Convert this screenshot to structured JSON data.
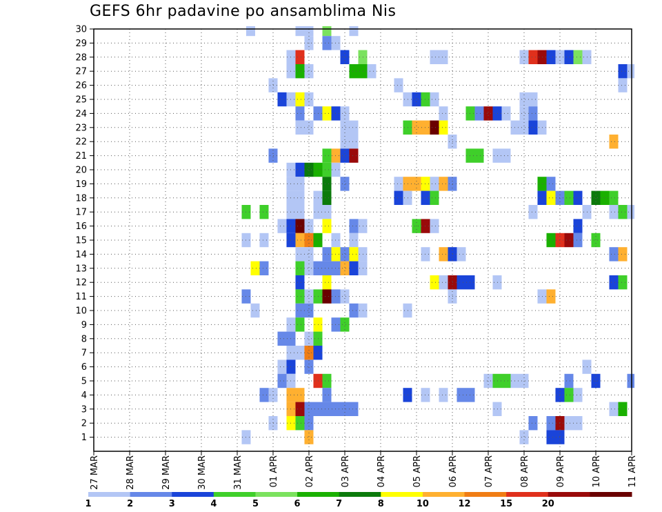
{
  "chart_data": {
    "type": "heatmap",
    "title": "GEFS 6hr padavine po ansamblima Nis",
    "xlabel": "",
    "ylabel": "",
    "x_axis": {
      "unit": "6-hour steps from 27 MAR",
      "range": [
        0,
        60
      ],
      "tick_labels": [
        "27 MAR",
        "28 MAR",
        "29 MAR",
        "30 MAR",
        "31 MAR",
        "01 APR",
        "02 APR",
        "03 APR",
        "04 APR",
        "05 APR",
        "06 APR",
        "07 APR",
        "08 APR",
        "09 APR",
        "10 APR",
        "11 APR"
      ]
    },
    "y_axis": {
      "range": [
        0,
        30
      ],
      "tick_labels": [
        "1",
        "2",
        "3",
        "4",
        "5",
        "6",
        "7",
        "8",
        "9",
        "10",
        "11",
        "12",
        "13",
        "14",
        "15",
        "16",
        "17",
        "18",
        "19",
        "20",
        "21",
        "22",
        "23",
        "24",
        "25",
        "26",
        "27",
        "28",
        "29",
        "30"
      ]
    },
    "grid": "dotted",
    "colorbar": {
      "labels": [
        "1",
        "2",
        "3",
        "4",
        "5",
        "6",
        "7",
        "8",
        "10",
        "12",
        "15",
        "20"
      ],
      "colors": [
        "#b3c6f5",
        "#6688e8",
        "#1a44d9",
        "#3fcf2a",
        "#7be25e",
        "#1ab000",
        "#0b7a0b",
        "#ffff00",
        "#ffb030",
        "#f07d14",
        "#e0301c",
        "#9a0a0a",
        "#6a0000"
      ]
    },
    "cells": [
      [
        17.5,
        30,
        0
      ],
      [
        23,
        30,
        0
      ],
      [
        24,
        30,
        0
      ],
      [
        26,
        30,
        4
      ],
      [
        29,
        30,
        0
      ],
      [
        24,
        29,
        0
      ],
      [
        26,
        29,
        1
      ],
      [
        27,
        29,
        0
      ],
      [
        22,
        28,
        0
      ],
      [
        23,
        28,
        10
      ],
      [
        28,
        28,
        2
      ],
      [
        30,
        28,
        4
      ],
      [
        38,
        28,
        0
      ],
      [
        39,
        28,
        0
      ],
      [
        48,
        28,
        0
      ],
      [
        49,
        28,
        10
      ],
      [
        50,
        28,
        11
      ],
      [
        51,
        28,
        2
      ],
      [
        52,
        28,
        0
      ],
      [
        53,
        28,
        2
      ],
      [
        54,
        28,
        4
      ],
      [
        55,
        28,
        0
      ],
      [
        22,
        27,
        0
      ],
      [
        23,
        27,
        5
      ],
      [
        24,
        27,
        0
      ],
      [
        29,
        27,
        5
      ],
      [
        30,
        27,
        5
      ],
      [
        31,
        27,
        0
      ],
      [
        59,
        27,
        2
      ],
      [
        60,
        27,
        0
      ],
      [
        20,
        26,
        0
      ],
      [
        34,
        26,
        0
      ],
      [
        59,
        26,
        0
      ],
      [
        21,
        25,
        2
      ],
      [
        22,
        25,
        0
      ],
      [
        23,
        25,
        7
      ],
      [
        24,
        25,
        0
      ],
      [
        35,
        25,
        0
      ],
      [
        36,
        25,
        2
      ],
      [
        37,
        25,
        3
      ],
      [
        38,
        25,
        0
      ],
      [
        48,
        25,
        0
      ],
      [
        49,
        25,
        0
      ],
      [
        23,
        24,
        1
      ],
      [
        25,
        24,
        1
      ],
      [
        26,
        24,
        7
      ],
      [
        27,
        24,
        2
      ],
      [
        28,
        24,
        0
      ],
      [
        39,
        24,
        0
      ],
      [
        42,
        24,
        3
      ],
      [
        43,
        24,
        1
      ],
      [
        44,
        24,
        11
      ],
      [
        45,
        24,
        2
      ],
      [
        46,
        24,
        0
      ],
      [
        48,
        24,
        0
      ],
      [
        49,
        24,
        1
      ],
      [
        23,
        23,
        0
      ],
      [
        24,
        23,
        0
      ],
      [
        28,
        23,
        0
      ],
      [
        29,
        23,
        0
      ],
      [
        35,
        23,
        3
      ],
      [
        36,
        23,
        8
      ],
      [
        37,
        23,
        8
      ],
      [
        38,
        23,
        12
      ],
      [
        39,
        23,
        7
      ],
      [
        47,
        23,
        0
      ],
      [
        48,
        23,
        0
      ],
      [
        49,
        23,
        2
      ],
      [
        50,
        23,
        0
      ],
      [
        28,
        22,
        0
      ],
      [
        29,
        22,
        0
      ],
      [
        40,
        22,
        0
      ],
      [
        58,
        22,
        8
      ],
      [
        20,
        21,
        1
      ],
      [
        26,
        21,
        3
      ],
      [
        27,
        21,
        8
      ],
      [
        28,
        21,
        2
      ],
      [
        29,
        21,
        11
      ],
      [
        42,
        21,
        3
      ],
      [
        43,
        21,
        3
      ],
      [
        45,
        21,
        0
      ],
      [
        46,
        21,
        0
      ],
      [
        22,
        20,
        0
      ],
      [
        23,
        20,
        2
      ],
      [
        24,
        20,
        6
      ],
      [
        25,
        20,
        5
      ],
      [
        26,
        20,
        3
      ],
      [
        27,
        20,
        0
      ],
      [
        22,
        19,
        0
      ],
      [
        23,
        19,
        0
      ],
      [
        26,
        19,
        6
      ],
      [
        28,
        19,
        1
      ],
      [
        34,
        19,
        0
      ],
      [
        35,
        19,
        8
      ],
      [
        36,
        19,
        8
      ],
      [
        37,
        19,
        7
      ],
      [
        38,
        19,
        0
      ],
      [
        39,
        19,
        8
      ],
      [
        40,
        19,
        1
      ],
      [
        50,
        19,
        5
      ],
      [
        51,
        19,
        1
      ],
      [
        22,
        18,
        0
      ],
      [
        23,
        18,
        0
      ],
      [
        25,
        18,
        0
      ],
      [
        26,
        18,
        6
      ],
      [
        34,
        18,
        2
      ],
      [
        35,
        18,
        0
      ],
      [
        37,
        18,
        2
      ],
      [
        38,
        18,
        3
      ],
      [
        50,
        18,
        2
      ],
      [
        51,
        18,
        7
      ],
      [
        52,
        18,
        1
      ],
      [
        53,
        18,
        3
      ],
      [
        54,
        18,
        2
      ],
      [
        56,
        18,
        6
      ],
      [
        57,
        18,
        5
      ],
      [
        58,
        18,
        3
      ],
      [
        17,
        17,
        3
      ],
      [
        19,
        17,
        3
      ],
      [
        22,
        17,
        0
      ],
      [
        23,
        17,
        0
      ],
      [
        25,
        17,
        0
      ],
      [
        26,
        17,
        0
      ],
      [
        49,
        17,
        0
      ],
      [
        55,
        17,
        0
      ],
      [
        58,
        17,
        0
      ],
      [
        59,
        17,
        3
      ],
      [
        60,
        17,
        0
      ],
      [
        21,
        16,
        0
      ],
      [
        22,
        16,
        2
      ],
      [
        23,
        16,
        12
      ],
      [
        24,
        16,
        0
      ],
      [
        26,
        16,
        7
      ],
      [
        29,
        16,
        1
      ],
      [
        30,
        16,
        0
      ],
      [
        36,
        16,
        3
      ],
      [
        37,
        16,
        11
      ],
      [
        38,
        16,
        0
      ],
      [
        54,
        16,
        2
      ],
      [
        17,
        15,
        0
      ],
      [
        19,
        15,
        0
      ],
      [
        22,
        15,
        2
      ],
      [
        23,
        15,
        8
      ],
      [
        24,
        15,
        9
      ],
      [
        25,
        15,
        5
      ],
      [
        27,
        15,
        0
      ],
      [
        29,
        15,
        0
      ],
      [
        51,
        15,
        5
      ],
      [
        52,
        15,
        10
      ],
      [
        53,
        15,
        11
      ],
      [
        54,
        15,
        1
      ],
      [
        56,
        15,
        3
      ],
      [
        23,
        14,
        0
      ],
      [
        24,
        14,
        0
      ],
      [
        26,
        14,
        1
      ],
      [
        27,
        14,
        7
      ],
      [
        28,
        14,
        1
      ],
      [
        29,
        14,
        7
      ],
      [
        30,
        14,
        0
      ],
      [
        37,
        14,
        0
      ],
      [
        39,
        14,
        8
      ],
      [
        40,
        14,
        2
      ],
      [
        41,
        14,
        0
      ],
      [
        58,
        14,
        1
      ],
      [
        59,
        14,
        8
      ],
      [
        18,
        13,
        7
      ],
      [
        19,
        13,
        1
      ],
      [
        23,
        13,
        3
      ],
      [
        24,
        13,
        0
      ],
      [
        25,
        13,
        1
      ],
      [
        26,
        13,
        1
      ],
      [
        27,
        13,
        1
      ],
      [
        28,
        13,
        8
      ],
      [
        29,
        13,
        2
      ],
      [
        30,
        13,
        0
      ],
      [
        23,
        12,
        2
      ],
      [
        26,
        12,
        7
      ],
      [
        38,
        12,
        7
      ],
      [
        39,
        12,
        0
      ],
      [
        40,
        12,
        11
      ],
      [
        41,
        12,
        2
      ],
      [
        42,
        12,
        2
      ],
      [
        45,
        12,
        0
      ],
      [
        58,
        12,
        2
      ],
      [
        59,
        12,
        3
      ],
      [
        17,
        11,
        1
      ],
      [
        23,
        11,
        3
      ],
      [
        24,
        11,
        0
      ],
      [
        25,
        11,
        3
      ],
      [
        26,
        11,
        12
      ],
      [
        27,
        11,
        1
      ],
      [
        28,
        11,
        0
      ],
      [
        40,
        11,
        0
      ],
      [
        50,
        11,
        0
      ],
      [
        51,
        11,
        8
      ],
      [
        18,
        10,
        0
      ],
      [
        23,
        10,
        1
      ],
      [
        24,
        10,
        1
      ],
      [
        29,
        10,
        1
      ],
      [
        30,
        10,
        0
      ],
      [
        35,
        10,
        0
      ],
      [
        22,
        9,
        0
      ],
      [
        23,
        9,
        3
      ],
      [
        25,
        9,
        7
      ],
      [
        27,
        9,
        1
      ],
      [
        28,
        9,
        3
      ],
      [
        21,
        8,
        1
      ],
      [
        22,
        8,
        1
      ],
      [
        24,
        8,
        0
      ],
      [
        25,
        8,
        3
      ],
      [
        22,
        7,
        0
      ],
      [
        23,
        7,
        0
      ],
      [
        24,
        7,
        9
      ],
      [
        25,
        7,
        2
      ],
      [
        21,
        6,
        0
      ],
      [
        22,
        6,
        2
      ],
      [
        24,
        6,
        1
      ],
      [
        55,
        6,
        0
      ],
      [
        21,
        5,
        1
      ],
      [
        22,
        5,
        0
      ],
      [
        25,
        5,
        10
      ],
      [
        26,
        5,
        3
      ],
      [
        44,
        5,
        0
      ],
      [
        45,
        5,
        3
      ],
      [
        46,
        5,
        3
      ],
      [
        47,
        5,
        0
      ],
      [
        48,
        5,
        0
      ],
      [
        53,
        5,
        1
      ],
      [
        56,
        5,
        2
      ],
      [
        60,
        5,
        1
      ],
      [
        19,
        4,
        1
      ],
      [
        20,
        4,
        0
      ],
      [
        22,
        4,
        8
      ],
      [
        23,
        4,
        8
      ],
      [
        26,
        4,
        1
      ],
      [
        35,
        4,
        2
      ],
      [
        37,
        4,
        0
      ],
      [
        39,
        4,
        0
      ],
      [
        41,
        4,
        1
      ],
      [
        42,
        4,
        1
      ],
      [
        52,
        4,
        2
      ],
      [
        53,
        4,
        3
      ],
      [
        54,
        4,
        0
      ],
      [
        22,
        3,
        8
      ],
      [
        23,
        3,
        11
      ],
      [
        24,
        3,
        1
      ],
      [
        25,
        3,
        1
      ],
      [
        26,
        3,
        1
      ],
      [
        27,
        3,
        1
      ],
      [
        28,
        3,
        1
      ],
      [
        29,
        3,
        1
      ],
      [
        45,
        3,
        0
      ],
      [
        58,
        3,
        0
      ],
      [
        59,
        3,
        5
      ],
      [
        20,
        2,
        0
      ],
      [
        22,
        2,
        7
      ],
      [
        23,
        2,
        3
      ],
      [
        24,
        2,
        1
      ],
      [
        49,
        2,
        1
      ],
      [
        51,
        2,
        1
      ],
      [
        52,
        2,
        11
      ],
      [
        53,
        2,
        0
      ],
      [
        54,
        2,
        0
      ],
      [
        17,
        1,
        0
      ],
      [
        24,
        1,
        8
      ],
      [
        48,
        1,
        0
      ],
      [
        51,
        1,
        2
      ],
      [
        52,
        1,
        2
      ]
    ]
  }
}
